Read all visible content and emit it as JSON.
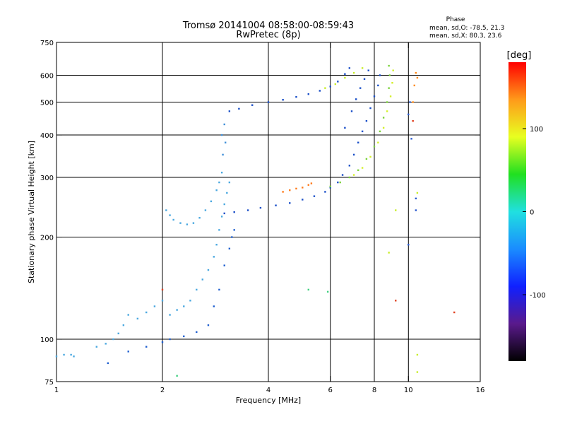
{
  "chart_data": {
    "type": "scatter",
    "title": "Tromsø 20141004 08:58:00-08:59:43",
    "subtitle": "RwPretec (8p)",
    "xlabel": "Frequency [MHz]",
    "ylabel": "Stationary phase Virtual Height [km]",
    "x_scale": "log",
    "y_scale": "log",
    "xlim": [
      1,
      16
    ],
    "ylim": [
      75,
      750
    ],
    "x_ticks": [
      1,
      2,
      4,
      6,
      8,
      10,
      16
    ],
    "y_ticks": [
      75,
      100,
      200,
      300,
      400,
      500,
      600,
      750
    ],
    "grid_x": [
      2,
      4,
      6,
      8,
      10
    ],
    "grid_y": [
      100,
      200,
      300,
      400,
      500,
      600
    ],
    "stats": {
      "header": "Phase",
      "line_o": "mean, sd,O: -78.5, 21.3",
      "line_x": "mean, sd,X:  80.3, 23.6"
    },
    "colorbar": {
      "label": "[deg]",
      "range": [
        -180,
        180
      ],
      "ticks": [
        100,
        0,
        -100
      ],
      "colors": [
        "#000000",
        "#5a1a8c",
        "#1020ff",
        "#1a8cff",
        "#20e0e0",
        "#20e020",
        "#e8ff20",
        "#ff9a1a",
        "#ff0000"
      ]
    },
    "traces": [
      {
        "name": "",
        "color": "#4aa8e0",
        "points": [
          [
            1.0,
            89
          ],
          [
            1.05,
            90
          ],
          [
            1.1,
            90
          ],
          [
            1.12,
            89
          ]
        ]
      },
      {
        "name": "",
        "color": "#4aa8e0",
        "points": [
          [
            1.3,
            95
          ],
          [
            1.38,
            97
          ],
          [
            1.45,
            100
          ],
          [
            1.5,
            104
          ],
          [
            1.55,
            110
          ],
          [
            1.6,
            118
          ],
          [
            1.7,
            115
          ],
          [
            1.8,
            120
          ],
          [
            1.9,
            125
          ],
          [
            2.0,
            130
          ],
          [
            2.1,
            118
          ],
          [
            2.2,
            122
          ],
          [
            2.3,
            125
          ],
          [
            2.4,
            130
          ],
          [
            2.5,
            140
          ],
          [
            2.6,
            150
          ],
          [
            2.7,
            160
          ],
          [
            2.8,
            175
          ],
          [
            2.85,
            190
          ],
          [
            2.9,
            210
          ],
          [
            2.95,
            230
          ],
          [
            3.0,
            250
          ],
          [
            3.05,
            270
          ],
          [
            3.1,
            290
          ]
        ]
      },
      {
        "name": "",
        "color": "#2060d0",
        "points": [
          [
            1.4,
            85
          ],
          [
            1.6,
            92
          ],
          [
            1.8,
            95
          ],
          [
            2.0,
            98
          ],
          [
            2.1,
            100
          ],
          [
            2.3,
            102
          ],
          [
            2.5,
            105
          ],
          [
            2.7,
            110
          ],
          [
            2.8,
            125
          ],
          [
            2.9,
            140
          ],
          [
            3.0,
            165
          ],
          [
            3.1,
            185
          ],
          [
            3.15,
            200
          ],
          [
            3.2,
            210
          ]
        ]
      },
      {
        "name": "",
        "color": "#4aa8e0",
        "points": [
          [
            2.05,
            240
          ],
          [
            2.1,
            232
          ],
          [
            2.15,
            225
          ],
          [
            2.25,
            220
          ],
          [
            2.35,
            218
          ],
          [
            2.45,
            220
          ],
          [
            2.55,
            228
          ],
          [
            2.65,
            240
          ],
          [
            2.75,
            255
          ],
          [
            2.85,
            275
          ],
          [
            2.9,
            290
          ],
          [
            2.95,
            310
          ]
        ]
      },
      {
        "name": "",
        "color": "#3f8fd8",
        "points": [
          [
            2.95,
            400
          ],
          [
            3.0,
            430
          ],
          [
            3.02,
            380
          ],
          [
            2.97,
            350
          ]
        ]
      },
      {
        "name": "",
        "color": "#1a4fc8",
        "points": [
          [
            3.0,
            235
          ],
          [
            3.2,
            237
          ],
          [
            3.5,
            240
          ],
          [
            3.8,
            244
          ],
          [
            4.2,
            248
          ],
          [
            4.6,
            252
          ],
          [
            5.0,
            258
          ],
          [
            5.4,
            264
          ],
          [
            5.8,
            272
          ],
          [
            6.0,
            280
          ],
          [
            6.3,
            290
          ],
          [
            6.5,
            305
          ],
          [
            6.8,
            325
          ],
          [
            7.0,
            350
          ],
          [
            7.2,
            380
          ],
          [
            7.4,
            410
          ],
          [
            7.6,
            440
          ],
          [
            7.8,
            480
          ],
          [
            8.0,
            520
          ],
          [
            8.2,
            560
          ],
          [
            8.3,
            600
          ]
        ]
      },
      {
        "name": "",
        "color": "#7ad23a",
        "points": [
          [
            6.0,
            282
          ],
          [
            6.4,
            290
          ],
          [
            6.8,
            300
          ],
          [
            7.2,
            315
          ],
          [
            7.6,
            340
          ],
          [
            8.0,
            370
          ],
          [
            8.3,
            410
          ],
          [
            8.5,
            450
          ],
          [
            8.7,
            500
          ],
          [
            8.8,
            550
          ],
          [
            8.85,
            600
          ],
          [
            8.8,
            640
          ]
        ]
      },
      {
        "name": "",
        "color": "#d4f02a",
        "points": [
          [
            7.0,
            305
          ],
          [
            7.4,
            320
          ],
          [
            7.8,
            345
          ],
          [
            8.2,
            380
          ],
          [
            8.5,
            420
          ],
          [
            8.7,
            470
          ],
          [
            8.9,
            520
          ],
          [
            9.0,
            570
          ],
          [
            9.05,
            620
          ]
        ]
      },
      {
        "name": "",
        "color": "#1a4fc8",
        "points": [
          [
            3.1,
            470
          ],
          [
            3.3,
            478
          ],
          [
            3.6,
            490
          ],
          [
            4.0,
            500
          ],
          [
            4.4,
            508
          ],
          [
            4.8,
            518
          ],
          [
            5.2,
            528
          ],
          [
            5.6,
            540
          ],
          [
            6.0,
            556
          ],
          [
            6.3,
            575
          ],
          [
            6.6,
            605
          ],
          [
            6.8,
            630
          ]
        ]
      },
      {
        "name": "",
        "color": "#c8ee2a",
        "points": [
          [
            5.8,
            550
          ],
          [
            6.2,
            565
          ],
          [
            6.6,
            590
          ],
          [
            7.0,
            610
          ],
          [
            7.4,
            630
          ]
        ]
      },
      {
        "name": "",
        "color": "#ff7a1a",
        "points": [
          [
            4.4,
            272
          ],
          [
            4.6,
            275
          ],
          [
            4.8,
            278
          ],
          [
            5.0,
            280
          ],
          [
            5.2,
            285
          ],
          [
            5.3,
            288
          ]
        ]
      },
      {
        "name": "",
        "color": "#1a4fc8",
        "points": [
          [
            6.6,
            420
          ],
          [
            6.9,
            470
          ],
          [
            7.1,
            510
          ],
          [
            7.3,
            550
          ],
          [
            7.5,
            585
          ],
          [
            7.7,
            620
          ]
        ]
      },
      {
        "name": "",
        "color": "#ff8c1a",
        "points": [
          [
            10.5,
            610
          ],
          [
            10.4,
            560
          ],
          [
            10.3,
            500
          ],
          [
            10.6,
            590
          ]
        ]
      },
      {
        "name": "",
        "color": "#2a5ad0",
        "points": [
          [
            10.1,
            500
          ],
          [
            10.0,
            460
          ],
          [
            10.2,
            390
          ],
          [
            10.0,
            190
          ],
          [
            10.5,
            260
          ],
          [
            10.5,
            240
          ]
        ]
      },
      {
        "name": "",
        "color": "#c8ee2a",
        "points": [
          [
            10.6,
            270
          ],
          [
            9.2,
            240
          ],
          [
            8.8,
            180
          ],
          [
            10.6,
            90
          ],
          [
            10.6,
            80
          ]
        ]
      },
      {
        "name": "",
        "color": "#e04020",
        "points": [
          [
            9.2,
            130
          ],
          [
            10.3,
            440
          ],
          [
            13.5,
            120
          ],
          [
            2.0,
            140
          ]
        ]
      },
      {
        "name": "",
        "color": "#40d080",
        "points": [
          [
            5.2,
            140
          ],
          [
            5.9,
            138
          ],
          [
            2.2,
            78
          ]
        ]
      }
    ]
  }
}
